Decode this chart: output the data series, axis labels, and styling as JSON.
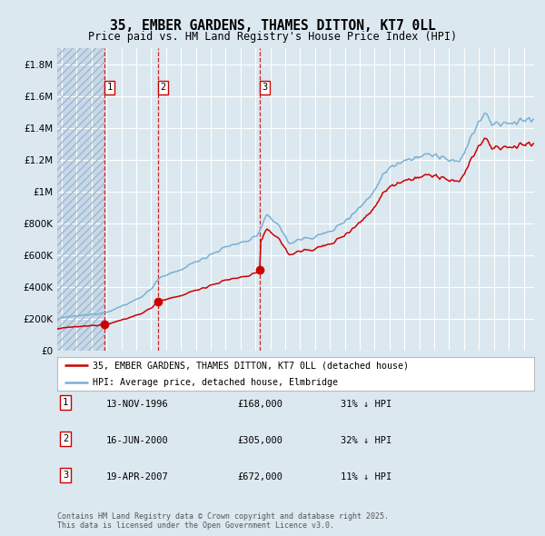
{
  "title": "35, EMBER GARDENS, THAMES DITTON, KT7 0LL",
  "subtitle": "Price paid vs. HM Land Registry's House Price Index (HPI)",
  "legend_line1": "35, EMBER GARDENS, THAMES DITTON, KT7 0LL (detached house)",
  "legend_line2": "HPI: Average price, detached house, Elmbridge",
  "transactions": [
    {
      "num": 1,
      "date": "13-NOV-1996",
      "year": 1996.87,
      "price": 168000,
      "label": "13-NOV-1996",
      "amount": "£168,000",
      "pct": "31% ↓ HPI"
    },
    {
      "num": 2,
      "date": "16-JUN-2000",
      "year": 2000.46,
      "price": 305000,
      "label": "16-JUN-2000",
      "amount": "£305,000",
      "pct": "32% ↓ HPI"
    },
    {
      "num": 3,
      "date": "19-APR-2007",
      "year": 2007.3,
      "price": 672000,
      "label": "19-APR-2007",
      "amount": "£672,000",
      "pct": "11% ↓ HPI"
    }
  ],
  "hpi_color": "#7ab0d4",
  "property_color": "#cc0000",
  "background_color": "#dce8f0",
  "vline_color": "#cc0000",
  "ylim_max": 1900000,
  "xlim_start": 1993.7,
  "xlim_end": 2025.7,
  "yticks": [
    0,
    200000,
    400000,
    600000,
    800000,
    1000000,
    1200000,
    1400000,
    1600000,
    1800000
  ],
  "footer": "Contains HM Land Registry data © Crown copyright and database right 2025.\nThis data is licensed under the Open Government Licence v3.0."
}
